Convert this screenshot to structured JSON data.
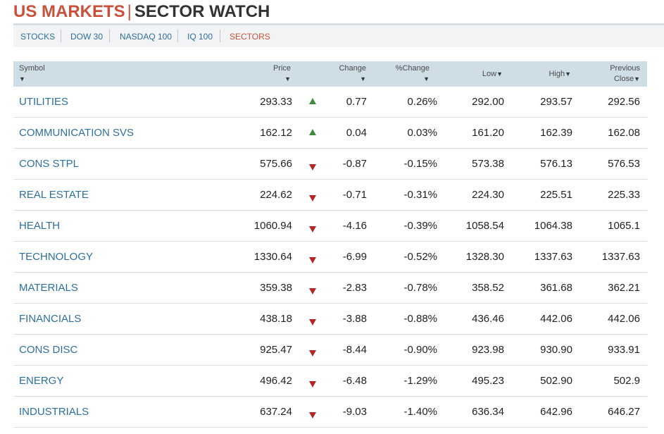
{
  "header": {
    "title_part1": "US MARKETS",
    "separator": "|",
    "title_part2": "SECTOR WATCH"
  },
  "subnav": {
    "tabs": [
      {
        "label": "STOCKS",
        "active": false
      },
      {
        "label": "DOW 30",
        "active": false
      },
      {
        "label": "NASDAQ 100",
        "active": false
      },
      {
        "label": "IQ 100",
        "active": false
      },
      {
        "label": "SECTORS",
        "active": true
      }
    ]
  },
  "table": {
    "columns": {
      "symbol": "Symbol",
      "price": "Price",
      "change": "Change",
      "pct_change": "%Change",
      "low": "Low",
      "high": "High",
      "prev_close_1": "Previous",
      "prev_close_2": "Close",
      "sort_arrow": "▼"
    },
    "rows": [
      {
        "symbol": "UTILITIES",
        "price": "293.33",
        "direction": "up",
        "change": "0.77",
        "pct_change": "0.26%",
        "low": "292.00",
        "high": "293.57",
        "prev_close": "292.56"
      },
      {
        "symbol": "COMMUNICATION SVS",
        "price": "162.12",
        "direction": "up",
        "change": "0.04",
        "pct_change": "0.03%",
        "low": "161.20",
        "high": "162.39",
        "prev_close": "162.08"
      },
      {
        "symbol": "CONS STPL",
        "price": "575.66",
        "direction": "down",
        "change": "-0.87",
        "pct_change": "-0.15%",
        "low": "573.38",
        "high": "576.13",
        "prev_close": "576.53"
      },
      {
        "symbol": "REAL ESTATE",
        "price": "224.62",
        "direction": "down",
        "change": "-0.71",
        "pct_change": "-0.31%",
        "low": "224.30",
        "high": "225.51",
        "prev_close": "225.33"
      },
      {
        "symbol": "HEALTH",
        "price": "1060.94",
        "direction": "down",
        "change": "-4.16",
        "pct_change": "-0.39%",
        "low": "1058.54",
        "high": "1064.38",
        "prev_close": "1065.1"
      },
      {
        "symbol": "TECHNOLOGY",
        "price": "1330.64",
        "direction": "down",
        "change": "-6.99",
        "pct_change": "-0.52%",
        "low": "1328.30",
        "high": "1337.63",
        "prev_close": "1337.63"
      },
      {
        "symbol": "MATERIALS",
        "price": "359.38",
        "direction": "down",
        "change": "-2.83",
        "pct_change": "-0.78%",
        "low": "358.52",
        "high": "361.68",
        "prev_close": "362.21"
      },
      {
        "symbol": "FINANCIALS",
        "price": "438.18",
        "direction": "down",
        "change": "-3.88",
        "pct_change": "-0.88%",
        "low": "436.46",
        "high": "442.06",
        "prev_close": "442.06"
      },
      {
        "symbol": "CONS DISC",
        "price": "925.47",
        "direction": "down",
        "change": "-8.44",
        "pct_change": "-0.90%",
        "low": "923.98",
        "high": "930.90",
        "prev_close": "933.91"
      },
      {
        "symbol": "ENERGY",
        "price": "496.42",
        "direction": "down",
        "change": "-6.48",
        "pct_change": "-1.29%",
        "low": "495.23",
        "high": "502.90",
        "prev_close": "502.9"
      },
      {
        "symbol": "INDUSTRIALS",
        "price": "637.24",
        "direction": "down",
        "change": "-9.03",
        "pct_change": "-1.40%",
        "low": "636.34",
        "high": "642.96",
        "prev_close": "646.27"
      }
    ]
  },
  "colors": {
    "brand_red": "#c9513b",
    "link_blue": "#2e6f9c",
    "up_green": "#3d8b3d",
    "down_red": "#b32626",
    "header_bg": "#cfdde6"
  }
}
